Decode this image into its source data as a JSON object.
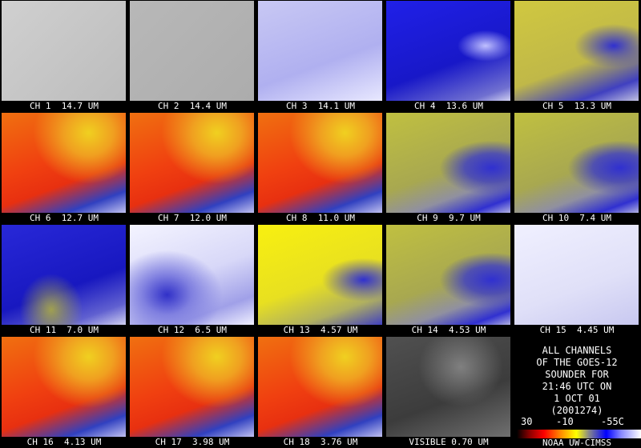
{
  "panels": [
    {
      "label": "CH 1  14.7 UM"
    },
    {
      "label": "CH 2  14.4 UM"
    },
    {
      "label": "CH 3  14.1 UM"
    },
    {
      "label": "CH 4  13.6 UM"
    },
    {
      "label": "CH 5  13.3 UM"
    },
    {
      "label": "CH 6  12.7 UM"
    },
    {
      "label": "CH 7  12.0 UM"
    },
    {
      "label": "CH 8  11.0 UM"
    },
    {
      "label": "CH 9  9.7 UM"
    },
    {
      "label": "CH 10  7.4 UM"
    },
    {
      "label": "CH 11  7.0 UM"
    },
    {
      "label": "CH 12  6.5 UM"
    },
    {
      "label": "CH 13  4.57 UM"
    },
    {
      "label": "CH 14  4.53 UM"
    },
    {
      "label": "CH 15  4.45 UM"
    },
    {
      "label": "CH 16  4.13 UM"
    },
    {
      "label": "CH 17  3.98 UM"
    },
    {
      "label": "CH 18  3.76 UM"
    },
    {
      "label": "VISIBLE 0.70 UM"
    }
  ],
  "info": {
    "lines": [
      "ALL CHANNELS",
      "OF THE GOES-12",
      "SOUNDER FOR",
      "21:46 UTC ON",
      "1 OCT 01",
      "(2001274)"
    ],
    "scale_labels": [
      "30",
      "-10",
      "-55C"
    ],
    "credit": "NOAA UW-CIMSS"
  }
}
